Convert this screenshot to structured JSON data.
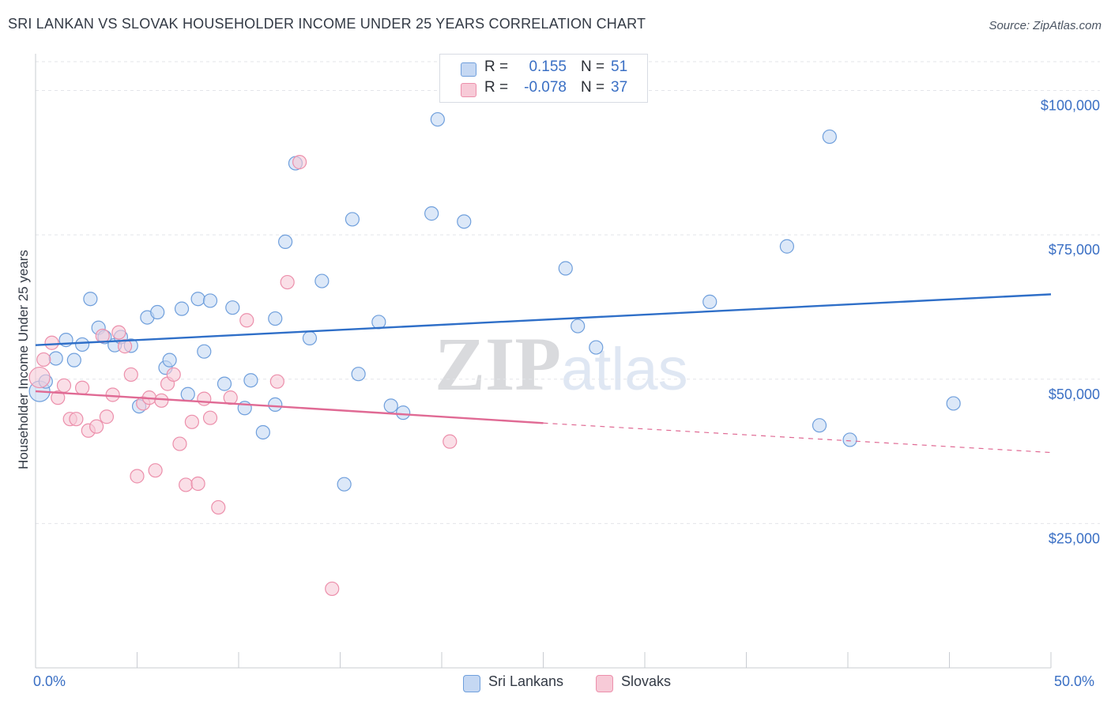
{
  "title": "SRI LANKAN VS SLOVAK HOUSEHOLDER INCOME UNDER 25 YEARS CORRELATION CHART",
  "source": "Source: ZipAtlas.com",
  "watermark": {
    "zip": "ZIP",
    "atlas": "atlas"
  },
  "stats": [
    {
      "r_label": "R =",
      "r_value": "0.155",
      "n_label": "N =",
      "n_value": "51",
      "color": "#a9c6f0"
    },
    {
      "r_label": "R =",
      "r_value": "-0.078",
      "n_label": "N =",
      "n_value": "37",
      "color": "#f4b6c8"
    }
  ],
  "legend": [
    {
      "label": "Sri Lankans",
      "color": "#a9c6f0"
    },
    {
      "label": "Slovaks",
      "color": "#f4b6c8"
    }
  ],
  "chart_data": {
    "type": "scatter",
    "ylabel": "Householder Income Under 25 years",
    "x_tick_min_label": "0.0%",
    "x_tick_max_label": "50.0%",
    "xlim": [
      0,
      50
    ],
    "ylim": [
      0,
      105000
    ],
    "y_ticks": [
      {
        "value": 100000,
        "label": "$100,000"
      },
      {
        "value": 75000,
        "label": "$75,000"
      },
      {
        "value": 50000,
        "label": "$50,000"
      },
      {
        "value": 25000,
        "label": "$25,000"
      }
    ],
    "grid": true,
    "series": [
      {
        "name": "Sri Lankans",
        "color": "#6f9fdc",
        "fill": "#c5d8f3",
        "trend": {
          "x": [
            0,
            50
          ],
          "y": [
            55900,
            64700
          ],
          "color": "#2f6fc8"
        },
        "points": [
          [
            0.2,
            47900
          ],
          [
            0.5,
            49600
          ],
          [
            1.0,
            53600
          ],
          [
            1.5,
            56800
          ],
          [
            1.9,
            53300
          ],
          [
            2.3,
            56000
          ],
          [
            2.7,
            63900
          ],
          [
            3.1,
            58900
          ],
          [
            3.4,
            57300
          ],
          [
            3.9,
            55900
          ],
          [
            4.2,
            57300
          ],
          [
            4.7,
            55800
          ],
          [
            5.1,
            45300
          ],
          [
            5.5,
            60700
          ],
          [
            6.0,
            61600
          ],
          [
            6.4,
            52000
          ],
          [
            6.6,
            53300
          ],
          [
            7.2,
            62200
          ],
          [
            7.5,
            47400
          ],
          [
            8.0,
            63900
          ],
          [
            8.3,
            54800
          ],
          [
            8.6,
            63600
          ],
          [
            9.3,
            49200
          ],
          [
            9.7,
            62400
          ],
          [
            10.3,
            45000
          ],
          [
            10.6,
            49800
          ],
          [
            11.2,
            40800
          ],
          [
            11.8,
            60500
          ],
          [
            11.8,
            45600
          ],
          [
            12.3,
            73800
          ],
          [
            12.8,
            87400
          ],
          [
            13.5,
            57100
          ],
          [
            14.1,
            67000
          ],
          [
            15.2,
            31800
          ],
          [
            15.6,
            77700
          ],
          [
            15.9,
            50900
          ],
          [
            16.9,
            59900
          ],
          [
            17.5,
            45400
          ],
          [
            18.1,
            44200
          ],
          [
            19.5,
            78700
          ],
          [
            19.8,
            95000
          ],
          [
            21.1,
            77300
          ],
          [
            26.1,
            69200
          ],
          [
            26.7,
            59200
          ],
          [
            27.6,
            55500
          ],
          [
            33.2,
            63400
          ],
          [
            37.0,
            73000
          ],
          [
            38.6,
            42000
          ],
          [
            39.1,
            92000
          ],
          [
            40.1,
            39500
          ],
          [
            45.2,
            45800
          ]
        ]
      },
      {
        "name": "Slovaks",
        "color": "#ec8fab",
        "fill": "#f7cad7",
        "trend": {
          "x": [
            0,
            25
          ],
          "y": [
            47900,
            42400
          ],
          "color": "#e06a94"
        },
        "trend_dashed": {
          "x": [
            25,
            50
          ],
          "y": [
            42400,
            37300
          ],
          "color": "#e06a94"
        },
        "points": [
          [
            0.2,
            50300
          ],
          [
            0.4,
            53400
          ],
          [
            0.8,
            56300
          ],
          [
            1.1,
            46800
          ],
          [
            1.4,
            48900
          ],
          [
            1.7,
            43100
          ],
          [
            2.0,
            43100
          ],
          [
            2.3,
            48500
          ],
          [
            2.6,
            41100
          ],
          [
            3.0,
            41800
          ],
          [
            3.3,
            57500
          ],
          [
            3.5,
            43500
          ],
          [
            3.8,
            47300
          ],
          [
            4.1,
            58100
          ],
          [
            4.4,
            55700
          ],
          [
            4.7,
            50800
          ],
          [
            5.0,
            33200
          ],
          [
            5.3,
            45800
          ],
          [
            5.6,
            46800
          ],
          [
            5.9,
            34200
          ],
          [
            6.2,
            46300
          ],
          [
            6.5,
            49200
          ],
          [
            6.8,
            50800
          ],
          [
            7.1,
            38800
          ],
          [
            7.4,
            31700
          ],
          [
            7.7,
            42600
          ],
          [
            8.0,
            31900
          ],
          [
            8.3,
            46600
          ],
          [
            8.6,
            43300
          ],
          [
            9.0,
            27800
          ],
          [
            9.6,
            46800
          ],
          [
            10.4,
            60200
          ],
          [
            11.9,
            49600
          ],
          [
            12.4,
            66800
          ],
          [
            13.0,
            87600
          ],
          [
            14.6,
            13700
          ],
          [
            20.4,
            39200
          ]
        ]
      }
    ]
  }
}
